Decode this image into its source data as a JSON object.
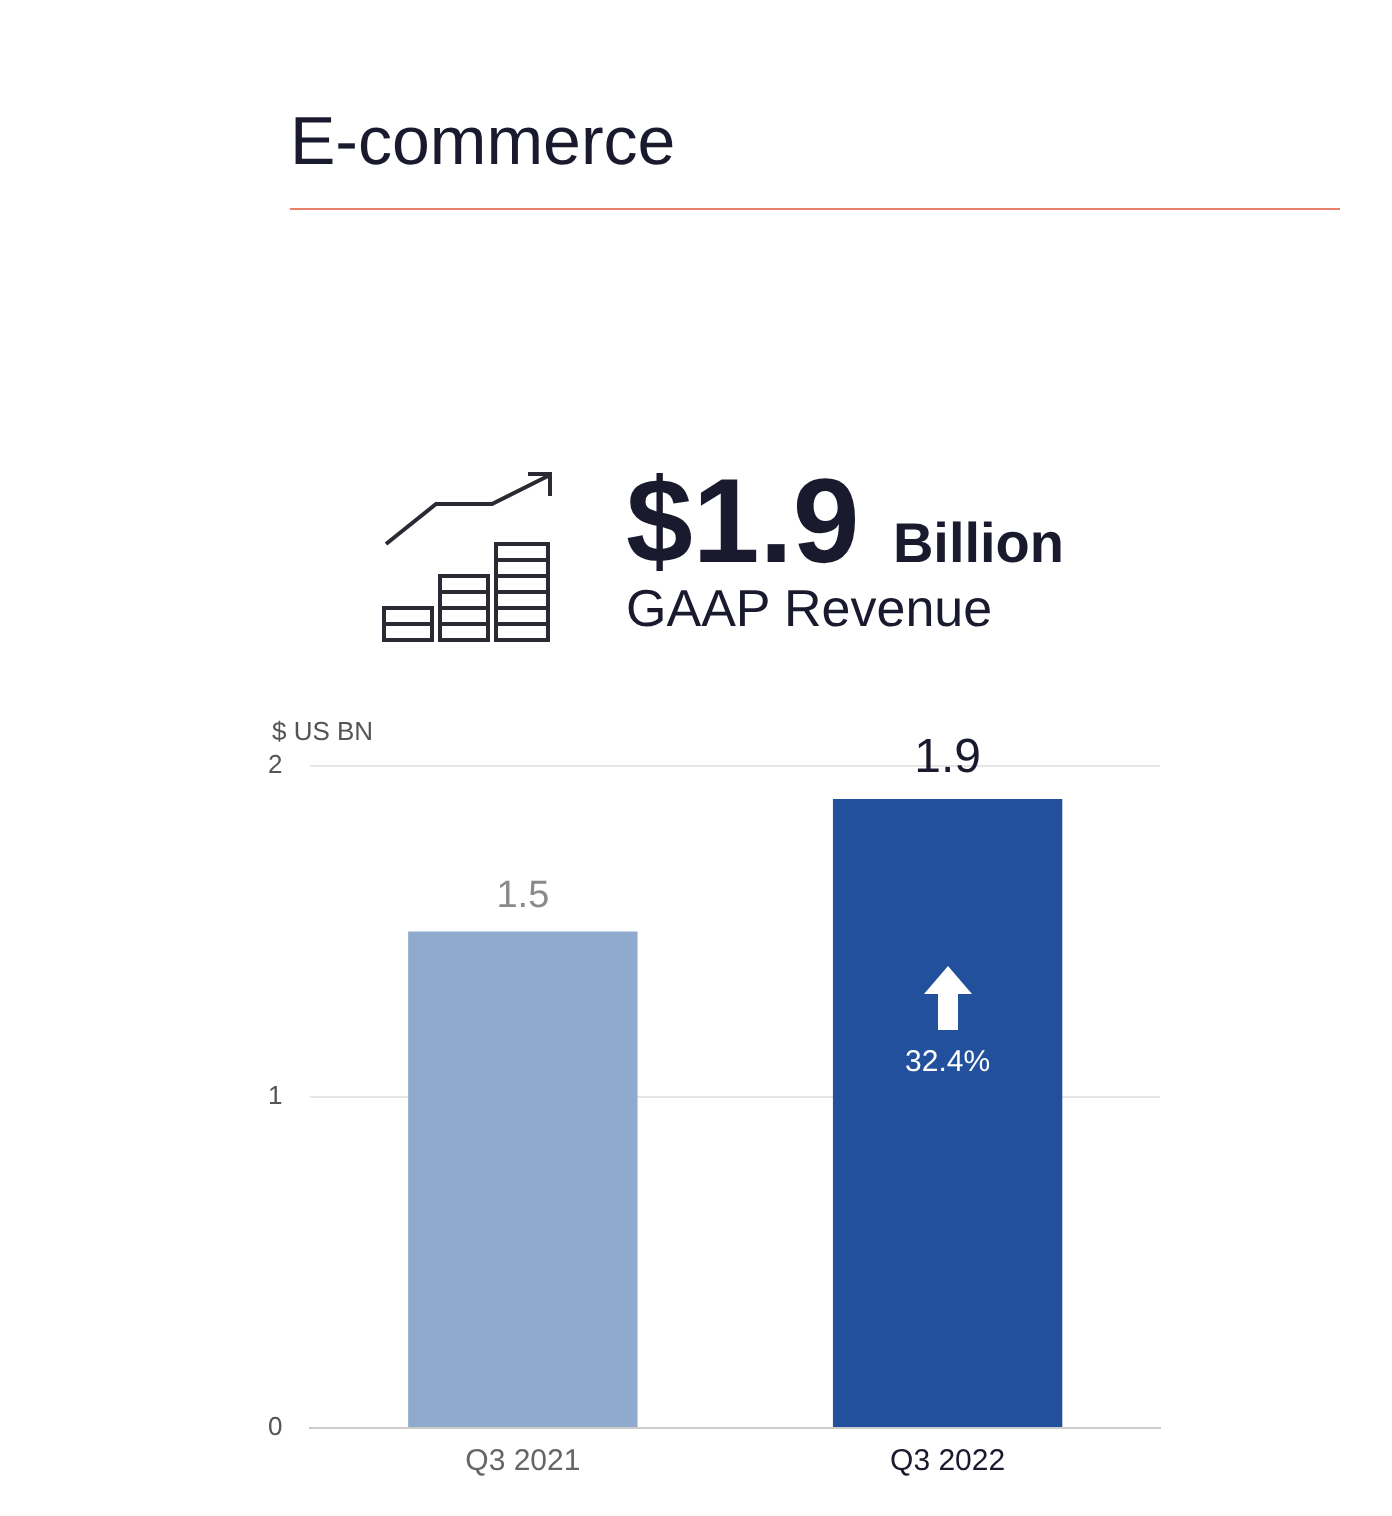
{
  "chart_data": {
    "type": "bar",
    "title": "E-commerce",
    "subtitle": "$1.9 Billion",
    "ylabel": "$ US BN",
    "categories": [
      "Q3 2021",
      "Q3 2022"
    ],
    "values": [
      1.5,
      1.9
    ],
    "colors": [
      "#8faacd",
      "#22509c"
    ],
    "ylim": [
      0,
      2
    ],
    "yticks": [
      0,
      1,
      2
    ],
    "grid": "y",
    "legend": false,
    "data_labels": true,
    "annotations": [
      "GAAP Revenue",
      "32.4%"
    ]
  }
}
